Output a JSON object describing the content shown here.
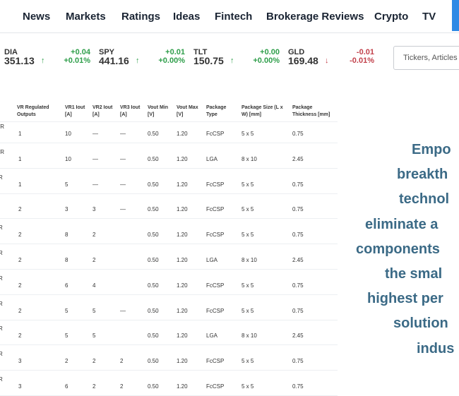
{
  "nav": {
    "items": [
      "News",
      "Markets",
      "Ratings",
      "Ideas",
      "Fintech",
      "Brokerage Reviews",
      "Crypto",
      "TV"
    ]
  },
  "tickers": [
    {
      "symbol": "DIA",
      "price": "351.13",
      "change": "+0.04",
      "percent": "+0.01%",
      "direction": "up"
    },
    {
      "symbol": "SPY",
      "price": "441.16",
      "change": "+0.01",
      "percent": "+0.00%",
      "direction": "up"
    },
    {
      "symbol": "TLT",
      "price": "150.75",
      "change": "+0.00",
      "percent": "+0.00%",
      "direction": "up"
    },
    {
      "symbol": "GLD",
      "price": "169.48",
      "change": "-0.01",
      "percent": "-0.01%",
      "direction": "down"
    }
  ],
  "search": {
    "placeholder": "Tickers, Articles"
  },
  "table": {
    "header": [
      "VR Regulated Outputs",
      "VR1 Iout [A]",
      "VR2 Iout [A]",
      "VR3 Iout [A]",
      "Vout Min [V]",
      "Vout Max [V]",
      "Package Type",
      "Package Size (L x W) [mm]",
      "Package Thickness [mm]"
    ],
    "rows": [
      {
        "stub": "/R",
        "cells": [
          "1",
          "10",
          "—",
          "—",
          "0.50",
          "1.20",
          "FcCSP",
          "5 x 5",
          "0.75"
        ]
      },
      {
        "stub": "/R",
        "cells": [
          "1",
          "10",
          "—",
          "—",
          "0.50",
          "1.20",
          "LGA",
          "8 x 10",
          "2.45"
        ]
      },
      {
        "stub": "R",
        "cells": [
          "1",
          "5",
          "—",
          "—",
          "0.50",
          "1.20",
          "FcCSP",
          "5 x 5",
          "0.75"
        ]
      },
      {
        "cells": [
          "2",
          "3",
          "3",
          "—",
          "0.50",
          "1.20",
          "FcCSP",
          "5 x 5",
          "0.75"
        ]
      },
      {
        "stub": "R",
        "cells": [
          "2",
          "8",
          "2",
          null,
          "0.50",
          "1.20",
          "FcCSP",
          "5 x 5",
          "0.75"
        ]
      },
      {
        "stub": "R",
        "cells": [
          "2",
          "8",
          "2",
          null,
          "0.50",
          "1.20",
          "LGA",
          "8 x 10",
          "2.45"
        ]
      },
      {
        "stub": "R",
        "cells": [
          "2",
          "6",
          "4",
          null,
          "0.50",
          "1.20",
          "FcCSP",
          "5 x 5",
          "0.75"
        ]
      },
      {
        "stub": "R",
        "cells": [
          "2",
          "5",
          "5",
          "—",
          "0.50",
          "1.20",
          "FcCSP",
          "5 x 5",
          "0.75"
        ]
      },
      {
        "stub": "R",
        "cells": [
          "2",
          "5",
          "5",
          null,
          "0.50",
          "1.20",
          "LGA",
          "8 x 10",
          "2.45"
        ]
      },
      {
        "stub": "R",
        "cells": [
          "3",
          "2",
          "2",
          "2",
          "0.50",
          "1.20",
          "FcCSP",
          "5 x 5",
          "0.75"
        ]
      },
      {
        "stub": "R",
        "cells": [
          "3",
          "6",
          "2",
          "2",
          "0.50",
          "1.20",
          "FcCSP",
          "5 x 5",
          "0.75"
        ]
      }
    ]
  },
  "promo": {
    "lines": [
      "Empo",
      "breakth",
      "technol",
      "eliminate a",
      "components",
      "the smal",
      "highest per",
      "solution",
      "indus"
    ]
  }
}
